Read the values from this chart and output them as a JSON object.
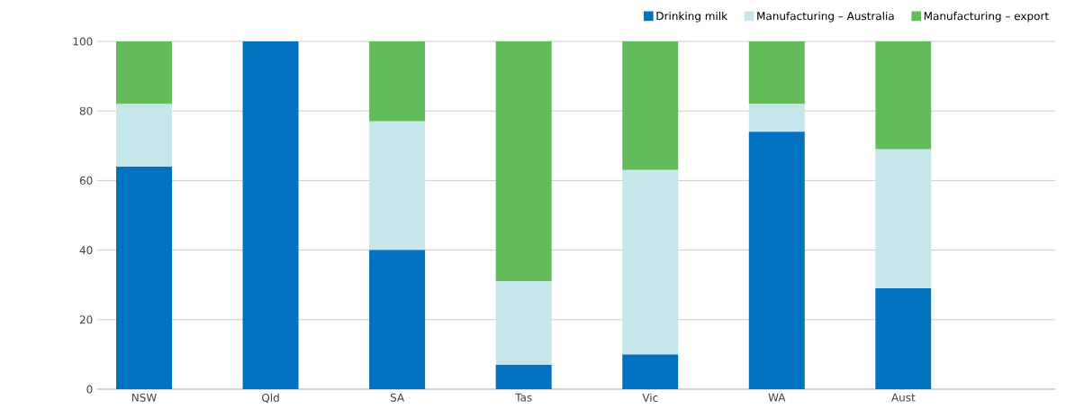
{
  "chart_data": {
    "type": "bar",
    "stacked": true,
    "categories": [
      "NSW",
      "Qld",
      "SA",
      "Tas",
      "Vic",
      "WA",
      "Aust"
    ],
    "series": [
      {
        "name": "Drinking milk",
        "color": "#0072bf",
        "values": [
          64,
          100,
          40,
          7,
          10,
          74,
          29
        ]
      },
      {
        "name": "Manufacturing – Australia",
        "color": "#c5e6ea",
        "values": [
          18,
          0,
          37,
          24,
          53,
          8,
          40
        ]
      },
      {
        "name": "Manufacturing – export",
        "color": "#63bc5c",
        "values": [
          18,
          0,
          23,
          69,
          37,
          18,
          31
        ]
      }
    ],
    "ylim": [
      0,
      100
    ],
    "yticks": [
      0,
      20,
      40,
      60,
      80,
      100
    ],
    "grid": "y",
    "legend": "top right"
  }
}
